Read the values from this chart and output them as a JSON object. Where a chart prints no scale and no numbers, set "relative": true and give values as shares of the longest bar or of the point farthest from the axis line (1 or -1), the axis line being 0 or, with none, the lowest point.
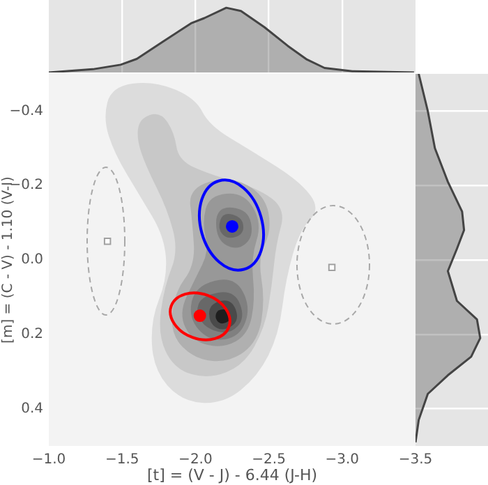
{
  "chart_data": [
    {
      "type": "area",
      "relative": true,
      "color": "#444444",
      "xlim": [
        -1.0,
        -3.5
      ],
      "xticks": [
        -1.5,
        -2.0,
        -2.5,
        -3.0
      ],
      "tick_labels": false,
      "grid": "x",
      "x": [
        -1.0,
        -1.3,
        -1.49,
        -1.6,
        -1.78,
        -1.97,
        -2.06,
        -2.21,
        -2.31,
        -2.47,
        -2.63,
        -2.76,
        -2.88,
        -3.07,
        -3.49
      ],
      "values": [
        0,
        0.05,
        0.12,
        0.21,
        0.48,
        0.76,
        0.84,
        1,
        0.95,
        0.7,
        0.41,
        0.2,
        0.07,
        0.02,
        0
      ]
    },
    {
      "type": "scatter",
      "xlabel": "[t] = (V - J) - 6.44 (J-H)",
      "ylabel": "[m] = (C - V) - 1.10 (V-I)",
      "xlim": [
        -1.0,
        -3.5
      ],
      "xticks": [
        {
          "value": -1.0,
          "label": "−1.0"
        },
        {
          "value": -1.5,
          "label": "−1.5"
        },
        {
          "value": -2.0,
          "label": "−2.0"
        },
        {
          "value": -2.5,
          "label": "−2.5"
        },
        {
          "value": -3.0,
          "label": "−3.0"
        },
        {
          "value": -3.5,
          "label": "−3.5"
        }
      ],
      "ylim": [
        0.5,
        -0.5
      ],
      "yticks": [
        {
          "value": -0.4,
          "label": "−0.4"
        },
        {
          "value": -0.2,
          "label": "−0.2"
        },
        {
          "value": 0.0,
          "label": "0.0"
        },
        {
          "value": 0.2,
          "label": "0.2"
        },
        {
          "value": 0.4,
          "label": "0.4"
        }
      ],
      "grid": false,
      "series": [
        {
          "type": "scatter",
          "marker": "circle",
          "color": "#0000ff",
          "x": [
            -2.25
          ],
          "values": [
            -0.09
          ]
        },
        {
          "type": "scatter",
          "marker": "circle",
          "color": "#ff0000",
          "x": [
            -2.03
          ],
          "values": [
            0.15
          ]
        },
        {
          "type": "scatter",
          "marker": "square",
          "color": "#a0a0a0",
          "x": [
            -1.4,
            -2.93
          ],
          "values": [
            -0.05,
            0.02
          ]
        }
      ]
    },
    {
      "type": "area",
      "orientation": "horizontal",
      "relative": true,
      "color": "#444444",
      "ylim": [
        0.5,
        -0.5
      ],
      "yticks": [
        -0.4,
        -0.2,
        0.0,
        0.2,
        0.4
      ],
      "tick_labels": false,
      "grid": "y",
      "x": [
        -0.5,
        -0.4,
        -0.3,
        -0.21,
        -0.13,
        -0.08,
        -0.03,
        0.03,
        0.11,
        0.16,
        0.21,
        0.26,
        0.31,
        0.36,
        0.43,
        0.49
      ],
      "values": [
        0.05,
        0.19,
        0.3,
        0.5,
        0.72,
        0.75,
        0.64,
        0.5,
        0.64,
        0.95,
        1,
        0.86,
        0.5,
        0.19,
        0.05,
        0
      ]
    }
  ]
}
